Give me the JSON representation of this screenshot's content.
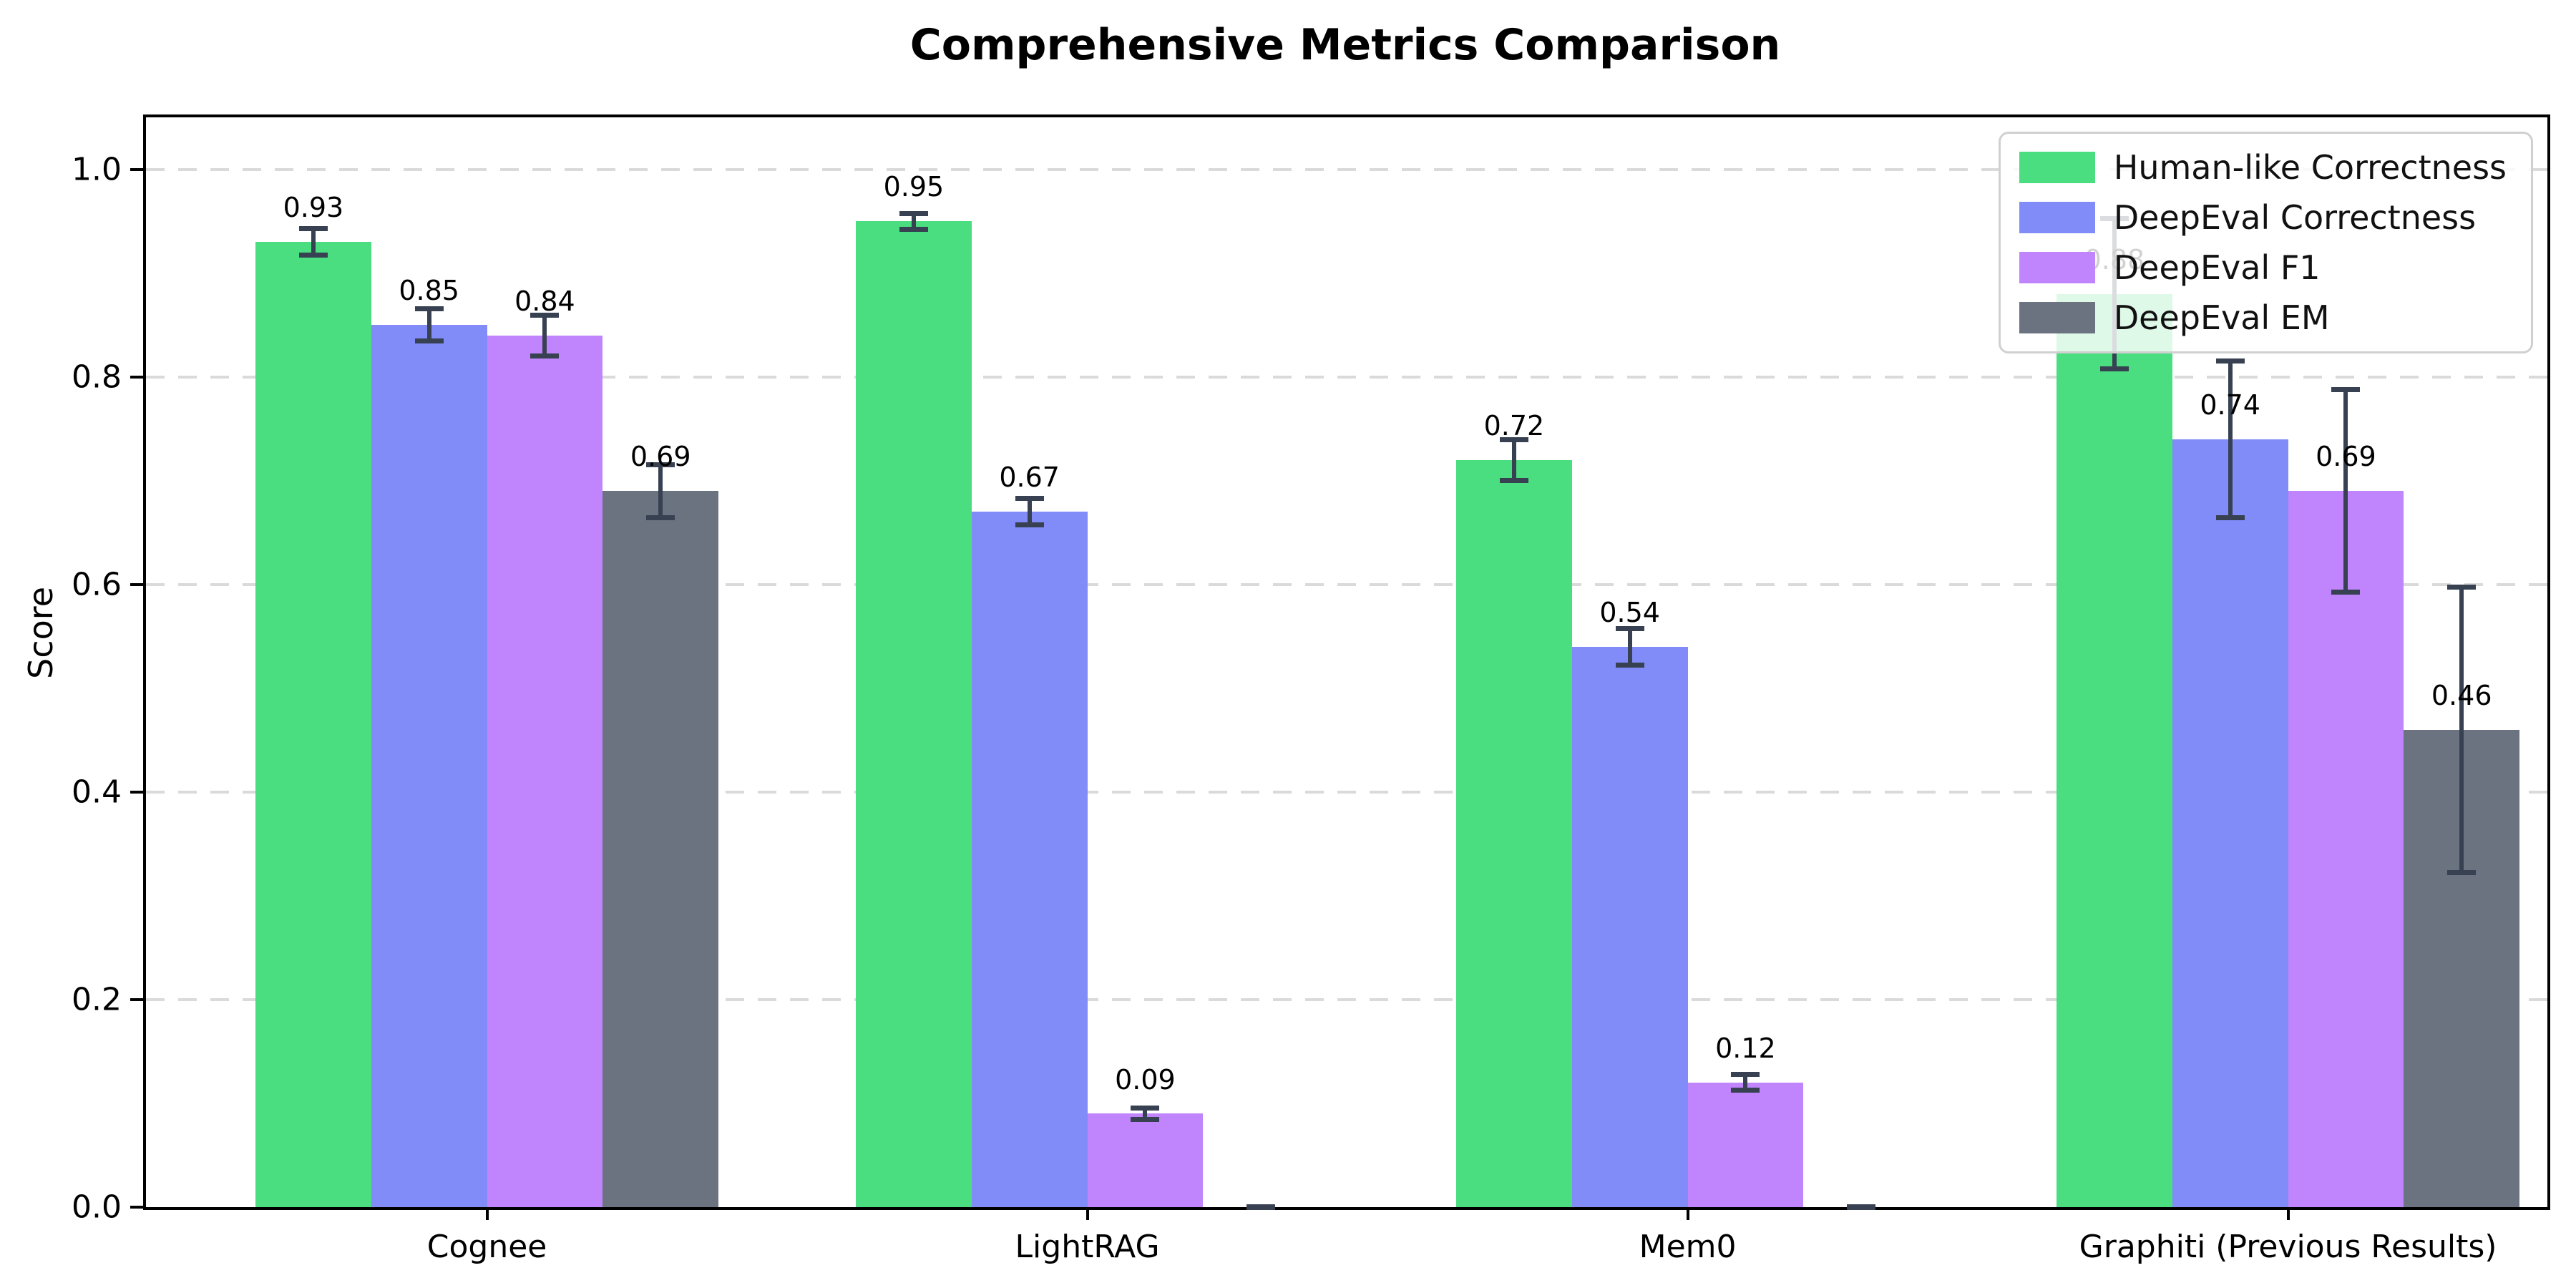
{
  "chart_data": {
    "type": "bar",
    "title": "Comprehensive Metrics Comparison",
    "ylabel": "Score",
    "categories": [
      "Cognee",
      "LightRAG",
      "Mem0",
      "Graphiti (Previous Results)"
    ],
    "series": [
      {
        "name": "Human-like Correctness",
        "color": "#4ade80",
        "values": [
          0.93,
          0.95,
          0.72,
          0.88
        ],
        "errors": [
          0.015,
          0.01,
          0.022,
          0.075
        ],
        "labels": [
          "0.93",
          "0.95",
          "0.72",
          "0.88"
        ]
      },
      {
        "name": "DeepEval Correctness",
        "color": "#818cf8",
        "values": [
          0.85,
          0.67,
          0.54,
          0.74
        ],
        "errors": [
          0.018,
          0.015,
          0.02,
          0.078
        ],
        "labels": [
          "0.85",
          "0.67",
          "0.54",
          "0.74"
        ]
      },
      {
        "name": "DeepEval F1",
        "color": "#c084fc",
        "values": [
          0.84,
          0.09,
          0.12,
          0.69
        ],
        "errors": [
          0.022,
          0.008,
          0.01,
          0.1
        ],
        "labels": [
          "0.84",
          "0.09",
          "0.12",
          "0.69"
        ]
      },
      {
        "name": "DeepEval EM",
        "color": "#6b7280",
        "values": [
          0.69,
          0.0,
          0.0,
          0.46
        ],
        "errors": [
          0.028,
          0.002,
          0.002,
          0.14
        ],
        "labels": [
          "0.69",
          "",
          "",
          "0.46"
        ]
      }
    ],
    "yticks": [
      0.0,
      0.2,
      0.4,
      0.6,
      0.8,
      1.0
    ],
    "ytick_labels": [
      "0.0",
      "0.2",
      "0.4",
      "0.6",
      "0.8",
      "1.0"
    ],
    "ylim": [
      0,
      1.05
    ],
    "grid": "horizontal-dashed",
    "legend_position": "upper-right",
    "error_bar_color": "#374151",
    "axis_color": "#000000",
    "gridline_color": "#dadada"
  }
}
